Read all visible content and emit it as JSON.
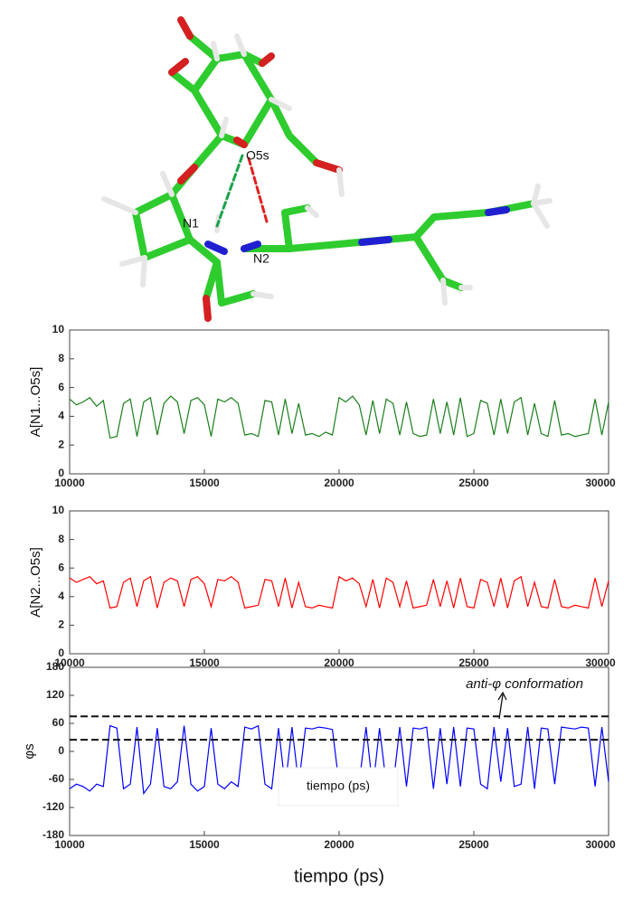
{
  "molecule_labels": [
    "O5s",
    "N1",
    "N2"
  ],
  "overlay_label": "tiempo (ps)",
  "chart_data": [
    {
      "type": "line",
      "ylabel": "A[N1...O5s]",
      "color": "#1a7f1a",
      "x": [
        10000,
        10250,
        10500,
        10750,
        11000,
        11250,
        11500,
        11750,
        12000,
        12250,
        12500,
        12750,
        13000,
        13250,
        13500,
        13750,
        14000,
        14250,
        14500,
        14750,
        15000,
        15250,
        15500,
        15750,
        16000,
        16250,
        16500,
        16750,
        17000,
        17250,
        17500,
        17750,
        18000,
        18250,
        18500,
        18750,
        19000,
        19250,
        19500,
        19750,
        20000,
        20250,
        20500,
        20750,
        21000,
        21250,
        21500,
        21750,
        22000,
        22250,
        22500,
        22750,
        23000,
        23250,
        23500,
        23750,
        24000,
        24250,
        24500,
        24750,
        25000,
        25250,
        25500,
        25750,
        26000,
        26250,
        26500,
        26750,
        27000,
        27250,
        27500,
        27750,
        28000,
        28250,
        28500,
        28750,
        29000,
        29250,
        29500,
        29750,
        30000
      ],
      "values": [
        5.2,
        4.8,
        5.0,
        5.3,
        4.7,
        5.1,
        2.5,
        2.6,
        4.9,
        5.2,
        2.6,
        5.0,
        5.3,
        2.7,
        4.9,
        5.4,
        5.0,
        2.8,
        5.1,
        5.3,
        4.8,
        2.6,
        5.2,
        5.0,
        5.3,
        4.9,
        2.7,
        2.8,
        2.6,
        5.1,
        5.0,
        2.7,
        5.2,
        2.8,
        4.9,
        2.7,
        2.8,
        2.6,
        2.9,
        2.7,
        5.3,
        5.0,
        5.4,
        4.8,
        2.7,
        5.1,
        2.8,
        5.2,
        4.9,
        2.7,
        5.0,
        2.8,
        2.6,
        2.7,
        5.2,
        2.8,
        5.0,
        2.7,
        5.3,
        2.6,
        2.8,
        5.1,
        4.9,
        2.7,
        5.2,
        2.8,
        5.0,
        5.3,
        2.7,
        4.9,
        2.8,
        2.6,
        5.1,
        2.7,
        2.8,
        2.6,
        2.7,
        2.8,
        5.2,
        2.7,
        5.0
      ],
      "xlim": [
        10000,
        30000
      ],
      "ylim": [
        0,
        10
      ],
      "xticks": [
        10000,
        15000,
        20000,
        25000,
        30000
      ],
      "yticks": [
        0,
        2,
        4,
        6,
        8,
        10
      ]
    },
    {
      "type": "line",
      "ylabel": "A[N2...O5s]",
      "color": "#ff0000",
      "x": [
        10000,
        10250,
        10500,
        10750,
        11000,
        11250,
        11500,
        11750,
        12000,
        12250,
        12500,
        12750,
        13000,
        13250,
        13500,
        13750,
        14000,
        14250,
        14500,
        14750,
        15000,
        15250,
        15500,
        15750,
        16000,
        16250,
        16500,
        16750,
        17000,
        17250,
        17500,
        17750,
        18000,
        18250,
        18500,
        18750,
        19000,
        19250,
        19500,
        19750,
        20000,
        20250,
        20500,
        20750,
        21000,
        21250,
        21500,
        21750,
        22000,
        22250,
        22500,
        22750,
        23000,
        23250,
        23500,
        23750,
        24000,
        24250,
        24500,
        24750,
        25000,
        25250,
        25500,
        25750,
        26000,
        26250,
        26500,
        26750,
        27000,
        27250,
        27500,
        27750,
        28000,
        28250,
        28500,
        28750,
        29000,
        29250,
        29500,
        29750,
        30000
      ],
      "values": [
        5.3,
        5.0,
        5.2,
        5.4,
        4.9,
        5.1,
        3.2,
        3.3,
        5.0,
        5.3,
        3.3,
        5.1,
        5.4,
        3.2,
        5.0,
        5.3,
        5.1,
        3.3,
        5.2,
        5.4,
        4.9,
        3.3,
        5.2,
        5.1,
        5.4,
        5.0,
        3.2,
        3.3,
        3.4,
        5.2,
        5.1,
        3.3,
        5.3,
        3.2,
        5.0,
        3.3,
        3.2,
        3.4,
        3.3,
        3.2,
        5.4,
        5.1,
        5.3,
        4.9,
        3.3,
        5.2,
        3.2,
        5.3,
        5.0,
        3.3,
        5.1,
        3.2,
        3.3,
        3.4,
        5.2,
        3.3,
        5.1,
        3.2,
        5.3,
        3.3,
        3.2,
        5.2,
        5.0,
        3.3,
        5.3,
        3.2,
        5.1,
        5.4,
        3.3,
        5.0,
        3.3,
        3.2,
        5.2,
        3.3,
        3.2,
        3.4,
        3.3,
        3.2,
        5.3,
        3.3,
        5.1
      ],
      "xlim": [
        10000,
        30000
      ],
      "ylim": [
        0,
        10
      ],
      "xticks": [
        10000,
        15000,
        20000,
        25000,
        30000
      ],
      "yticks": [
        0,
        2,
        4,
        6,
        8,
        10
      ]
    },
    {
      "type": "line",
      "ylabel": "φs",
      "xlabel": "tiempo (ps)",
      "color": "#0000ff",
      "annotation": "anti-φ conformation",
      "hlines": [
        75,
        25
      ],
      "x": [
        10000,
        10250,
        10500,
        10750,
        11000,
        11250,
        11500,
        11750,
        12000,
        12250,
        12500,
        12750,
        13000,
        13250,
        13500,
        13750,
        14000,
        14250,
        14500,
        14750,
        15000,
        15250,
        15500,
        15750,
        16000,
        16250,
        16500,
        16750,
        17000,
        17250,
        17500,
        17750,
        18000,
        18250,
        18500,
        18750,
        19000,
        19250,
        19500,
        19750,
        20000,
        20250,
        20500,
        20750,
        21000,
        21250,
        21500,
        21750,
        22000,
        22250,
        22500,
        22750,
        23000,
        23250,
        23500,
        23750,
        24000,
        24250,
        24500,
        24750,
        25000,
        25250,
        25500,
        25750,
        26000,
        26250,
        26500,
        26750,
        27000,
        27250,
        27500,
        27750,
        28000,
        28250,
        28500,
        28750,
        29000,
        29250,
        29500,
        29750,
        30000
      ],
      "values": [
        -80,
        -70,
        -75,
        -85,
        -70,
        -75,
        55,
        50,
        -80,
        -70,
        52,
        -90,
        -70,
        50,
        -75,
        -80,
        -65,
        55,
        -70,
        -85,
        -75,
        50,
        -70,
        -80,
        -65,
        -75,
        52,
        48,
        55,
        -70,
        -80,
        50,
        -75,
        52,
        -70,
        50,
        48,
        52,
        50,
        47,
        -70,
        -85,
        -75,
        -65,
        52,
        -80,
        50,
        -70,
        -75,
        52,
        -75,
        50,
        48,
        52,
        -80,
        50,
        -70,
        52,
        -75,
        50,
        48,
        -70,
        -80,
        52,
        -65,
        50,
        -75,
        -70,
        52,
        -80,
        50,
        48,
        -70,
        52,
        50,
        48,
        52,
        50,
        -75,
        52,
        -65
      ],
      "xlim": [
        10000,
        30000
      ],
      "ylim": [
        -180,
        180
      ],
      "xticks": [
        10000,
        15000,
        20000,
        25000,
        30000
      ],
      "yticks": [
        -180,
        -120,
        -60,
        0,
        60,
        120,
        180
      ]
    }
  ]
}
